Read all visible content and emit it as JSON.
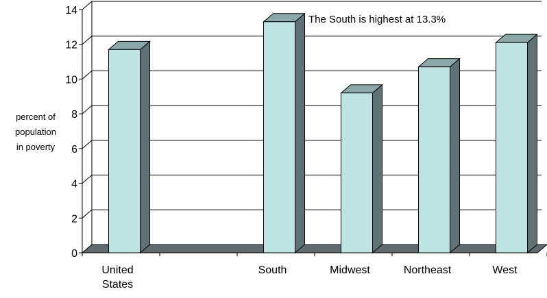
{
  "chart_data": {
    "type": "bar",
    "categories": [
      [
        "United",
        "States"
      ],
      [],
      [
        "South"
      ],
      [
        "Midwest"
      ],
      [
        "Northeast"
      ],
      [
        "West"
      ]
    ],
    "values": [
      11.7,
      null,
      13.3,
      9.2,
      10.7,
      12.1
    ],
    "ylabel": [
      "percent of",
      "population",
      "in poverty"
    ],
    "ylim": [
      0,
      14
    ],
    "yticks": [
      0,
      2,
      4,
      6,
      8,
      10,
      12,
      14
    ],
    "ytick_labels": [
      "0",
      "2",
      "4",
      "6",
      "8",
      "10",
      "12",
      "14"
    ],
    "annotation": "The South is highest at 13.3%",
    "grid": true,
    "colors": {
      "bar_front": "#bde3e3",
      "bar_side": "#5f7377",
      "bar_top": "#8aa8aa",
      "floor": "#5f6b6e",
      "outline": "#000000"
    }
  }
}
